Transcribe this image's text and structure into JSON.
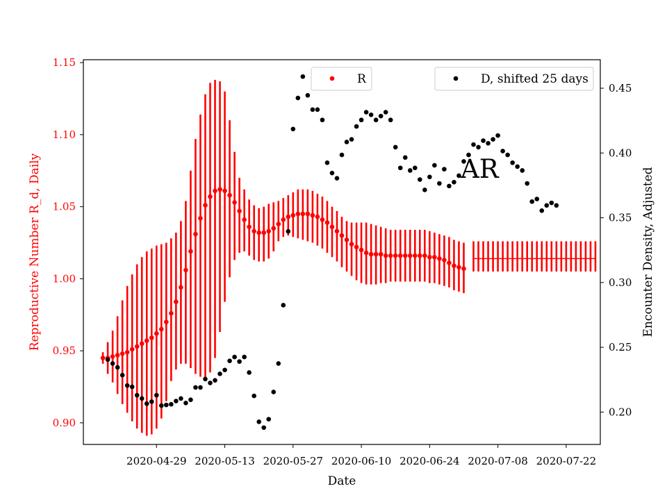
{
  "chart_data": {
    "type": "scatter",
    "annotation": "AR",
    "xlabel": "Date",
    "ylabel_left": "Reproductive Number R_d, Daily",
    "ylabel_right": "Encounter Density, Adjusted",
    "ylim_left": [
      0.885,
      1.152
    ],
    "ylim_right": [
      0.175,
      0.472
    ],
    "xlim": [
      "2020-04-14",
      "2020-07-29"
    ],
    "x_ticks": [
      "2020-04-29",
      "2020-05-13",
      "2020-05-27",
      "2020-06-10",
      "2020-06-24",
      "2020-07-08",
      "2020-07-22"
    ],
    "y_ticks_left": [
      "0.90",
      "0.95",
      "1.00",
      "1.05",
      "1.10",
      "1.15"
    ],
    "y_ticks_right": [
      "0.20",
      "0.25",
      "0.30",
      "0.35",
      "0.40",
      "0.45"
    ],
    "colors": {
      "R": "#ff0000",
      "D": "#000000",
      "left_axis": "#ff0000"
    },
    "legend": [
      {
        "label": "R",
        "color": "#ff0000",
        "placement": "upper-center"
      },
      {
        "label": "D, shifted 25 days",
        "color": "#000000",
        "placement": "upper-right"
      }
    ],
    "series": [
      {
        "name": "R",
        "axis": "left",
        "color": "#ff0000",
        "start_date": "2020-04-18",
        "values": [
          0.945,
          0.945,
          0.946,
          0.947,
          0.948,
          0.949,
          0.951,
          0.953,
          0.955,
          0.957,
          0.959,
          0.962,
          0.965,
          0.97,
          0.976,
          0.984,
          0.994,
          1.006,
          1.019,
          1.031,
          1.042,
          1.051,
          1.057,
          1.061,
          1.062,
          1.061,
          1.058,
          1.053,
          1.047,
          1.041,
          1.036,
          1.033,
          1.032,
          1.032,
          1.033,
          1.035,
          1.038,
          1.041,
          1.043,
          1.044,
          1.045,
          1.045,
          1.045,
          1.044,
          1.043,
          1.041,
          1.039,
          1.036,
          1.033,
          1.03,
          1.027,
          1.024,
          1.022,
          1.02,
          1.018,
          1.017,
          1.017,
          1.017,
          1.016,
          1.016,
          1.016,
          1.016,
          1.016,
          1.016,
          1.016,
          1.016,
          1.016,
          1.015,
          1.015,
          1.014,
          1.013,
          1.011,
          1.009,
          1.008,
          1.007
        ],
        "lower": [
          0.941,
          0.934,
          0.928,
          0.92,
          0.913,
          0.907,
          0.901,
          0.896,
          0.893,
          0.891,
          0.892,
          0.896,
          0.903,
          0.915,
          0.929,
          0.937,
          0.941,
          0.941,
          0.938,
          0.934,
          0.932,
          0.931,
          0.935,
          0.945,
          0.963,
          0.984,
          1.001,
          1.013,
          1.018,
          1.019,
          1.016,
          1.013,
          1.012,
          1.012,
          1.014,
          1.019,
          1.026,
          1.029,
          1.03,
          1.029,
          1.028,
          1.027,
          1.026,
          1.025,
          1.023,
          1.021,
          1.018,
          1.015,
          1.012,
          1.008,
          1.005,
          1.002,
          0.999,
          0.997,
          0.996,
          0.996,
          0.996,
          0.997,
          0.997,
          0.998,
          0.998,
          0.998,
          0.998,
          0.998,
          0.998,
          0.998,
          0.998,
          0.997,
          0.997,
          0.996,
          0.995,
          0.994,
          0.992,
          0.991,
          0.99
        ],
        "upper": [
          0.949,
          0.956,
          0.964,
          0.974,
          0.985,
          0.995,
          1.003,
          1.01,
          1.015,
          1.019,
          1.021,
          1.023,
          1.024,
          1.025,
          1.028,
          1.032,
          1.04,
          1.054,
          1.075,
          1.097,
          1.114,
          1.128,
          1.136,
          1.138,
          1.137,
          1.13,
          1.11,
          1.088,
          1.07,
          1.062,
          1.055,
          1.051,
          1.049,
          1.05,
          1.052,
          1.053,
          1.054,
          1.056,
          1.058,
          1.06,
          1.062,
          1.062,
          1.062,
          1.061,
          1.059,
          1.057,
          1.054,
          1.05,
          1.047,
          1.043,
          1.04,
          1.039,
          1.039,
          1.039,
          1.039,
          1.038,
          1.037,
          1.036,
          1.035,
          1.034,
          1.034,
          1.034,
          1.034,
          1.034,
          1.034,
          1.034,
          1.034,
          1.033,
          1.032,
          1.031,
          1.03,
          1.029,
          1.027,
          1.026,
          1.025
        ]
      },
      {
        "name": "R",
        "axis": "left",
        "color": "#ff0000",
        "start_date": "2020-07-03",
        "end_date": "2020-07-28",
        "flat_value": 1.014,
        "lower": 1.005,
        "upper": 1.026
      },
      {
        "name": "D, shifted 25 days",
        "axis": "right",
        "color": "#000000",
        "points": [
          [
            "2020-04-19",
            0.2405
          ],
          [
            "2020-04-20",
            0.2375
          ],
          [
            "2020-04-21",
            0.2345
          ],
          [
            "2020-04-22",
            0.2285
          ],
          [
            "2020-04-23",
            0.2205
          ],
          [
            "2020-04-24",
            0.2195
          ],
          [
            "2020-04-25",
            0.213
          ],
          [
            "2020-04-26",
            0.2105
          ],
          [
            "2020-04-27",
            0.2065
          ],
          [
            "2020-04-28",
            0.208
          ],
          [
            "2020-04-29",
            0.213
          ],
          [
            "2020-04-30",
            0.205
          ],
          [
            "2020-05-01",
            0.2055
          ],
          [
            "2020-05-02",
            0.206
          ],
          [
            "2020-05-03",
            0.2085
          ],
          [
            "2020-05-04",
            0.2105
          ],
          [
            "2020-05-05",
            0.207
          ],
          [
            "2020-05-06",
            0.2095
          ],
          [
            "2020-05-07",
            0.219
          ],
          [
            "2020-05-08",
            0.219
          ],
          [
            "2020-05-09",
            0.2255
          ],
          [
            "2020-05-10",
            0.2225
          ],
          [
            "2020-05-11",
            0.2245
          ],
          [
            "2020-05-12",
            0.2295
          ],
          [
            "2020-05-13",
            0.2325
          ],
          [
            "2020-05-14",
            0.2395
          ],
          [
            "2020-05-15",
            0.2425
          ],
          [
            "2020-05-16",
            0.239
          ],
          [
            "2020-05-17",
            0.2425
          ],
          [
            "2020-05-18",
            0.2305
          ],
          [
            "2020-05-19",
            0.2125
          ],
          [
            "2020-05-20",
            0.1925
          ],
          [
            "2020-05-21",
            0.188
          ],
          [
            "2020-05-22",
            0.1945
          ],
          [
            "2020-05-23",
            0.2155
          ],
          [
            "2020-05-24",
            0.2375
          ],
          [
            "2020-05-25",
            0.2825
          ],
          [
            "2020-05-26",
            0.3395
          ],
          [
            "2020-05-27",
            0.4185
          ],
          [
            "2020-05-28",
            0.4425
          ],
          [
            "2020-05-29",
            0.459
          ],
          [
            "2020-05-30",
            0.4445
          ],
          [
            "2020-05-31",
            0.4335
          ],
          [
            "2020-06-01",
            0.4335
          ],
          [
            "2020-06-02",
            0.4255
          ],
          [
            "2020-06-03",
            0.3925
          ],
          [
            "2020-06-04",
            0.3845
          ],
          [
            "2020-06-05",
            0.3805
          ],
          [
            "2020-06-06",
            0.3985
          ],
          [
            "2020-06-07",
            0.4085
          ],
          [
            "2020-06-08",
            0.4105
          ],
          [
            "2020-06-09",
            0.4205
          ],
          [
            "2020-06-10",
            0.4255
          ],
          [
            "2020-06-11",
            0.4315
          ],
          [
            "2020-06-12",
            0.4295
          ],
          [
            "2020-06-13",
            0.4255
          ],
          [
            "2020-06-14",
            0.4285
          ],
          [
            "2020-06-15",
            0.4315
          ],
          [
            "2020-06-16",
            0.4255
          ],
          [
            "2020-06-17",
            0.4045
          ],
          [
            "2020-06-18",
            0.3885
          ],
          [
            "2020-06-19",
            0.3965
          ],
          [
            "2020-06-20",
            0.3865
          ],
          [
            "2020-06-21",
            0.3885
          ],
          [
            "2020-06-22",
            0.3795
          ],
          [
            "2020-06-23",
            0.3715
          ],
          [
            "2020-06-24",
            0.3815
          ],
          [
            "2020-06-25",
            0.3905
          ],
          [
            "2020-06-26",
            0.3765
          ],
          [
            "2020-06-27",
            0.3875
          ],
          [
            "2020-06-28",
            0.3745
          ],
          [
            "2020-06-29",
            0.3775
          ],
          [
            "2020-06-30",
            0.3825
          ],
          [
            "2020-07-01",
            0.3935
          ],
          [
            "2020-07-02",
            0.3985
          ],
          [
            "2020-07-03",
            0.4065
          ],
          [
            "2020-07-04",
            0.4045
          ],
          [
            "2020-07-05",
            0.4095
          ],
          [
            "2020-07-06",
            0.4075
          ],
          [
            "2020-07-07",
            0.4105
          ],
          [
            "2020-07-08",
            0.4135
          ],
          [
            "2020-07-09",
            0.4015
          ],
          [
            "2020-07-10",
            0.3985
          ],
          [
            "2020-07-11",
            0.3925
          ],
          [
            "2020-07-12",
            0.3895
          ],
          [
            "2020-07-13",
            0.3865
          ],
          [
            "2020-07-14",
            0.3765
          ],
          [
            "2020-07-15",
            0.3625
          ],
          [
            "2020-07-16",
            0.3645
          ],
          [
            "2020-07-17",
            0.3555
          ],
          [
            "2020-07-18",
            0.3595
          ],
          [
            "2020-07-19",
            0.3615
          ],
          [
            "2020-07-20",
            0.3595
          ]
        ]
      }
    ]
  }
}
